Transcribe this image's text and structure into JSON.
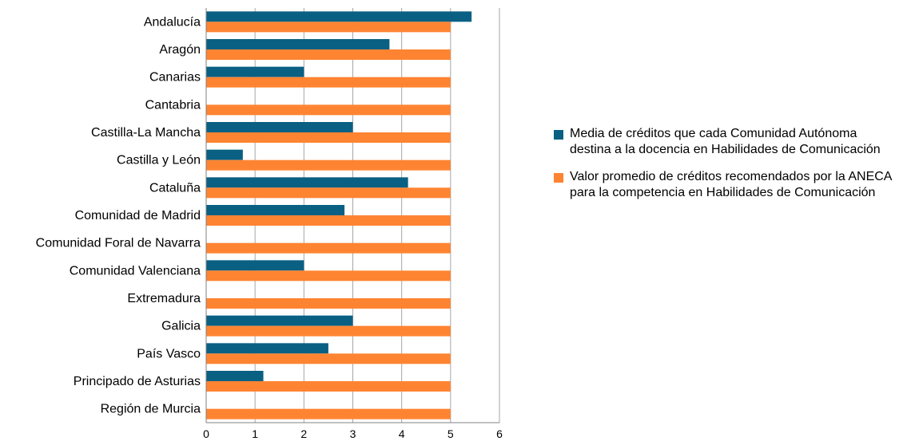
{
  "chart_data": {
    "type": "bar",
    "orientation": "horizontal",
    "categories": [
      "Andalucía",
      "Aragón",
      "Canarias",
      "Cantabria",
      "Castilla-La Mancha",
      "Castilla y León",
      "Cataluña",
      "Comunidad de Madrid",
      "Comunidad Foral de Navarra",
      "Comunidad Valenciana",
      "Extremadura",
      "Galicia",
      "País Vasco",
      "Principado de Asturias",
      "Región de Murcia"
    ],
    "series": [
      {
        "name": "Media de créditos que cada Comunidad Autónoma destina a la docencia en Habilidades de Comunicación",
        "color": "#0a6083",
        "values": [
          5.43,
          3.75,
          2.0,
          0,
          3.0,
          0.75,
          4.13,
          2.83,
          0,
          2.0,
          0,
          3.0,
          2.5,
          1.17,
          0
        ]
      },
      {
        "name": "Valor promedio de créditos recomendados por la ANECA para la competencia en Habilidades de Comunicación",
        "color": "#ff8432",
        "values": [
          5,
          5,
          5,
          5,
          5,
          5,
          5,
          5,
          5,
          5,
          5,
          5,
          5,
          5,
          5
        ]
      }
    ],
    "xlim": [
      0,
      6
    ],
    "xticks": [
      "0",
      "1",
      "2",
      "3",
      "4",
      "5",
      "6"
    ],
    "grid": true,
    "legend_position": "right"
  }
}
